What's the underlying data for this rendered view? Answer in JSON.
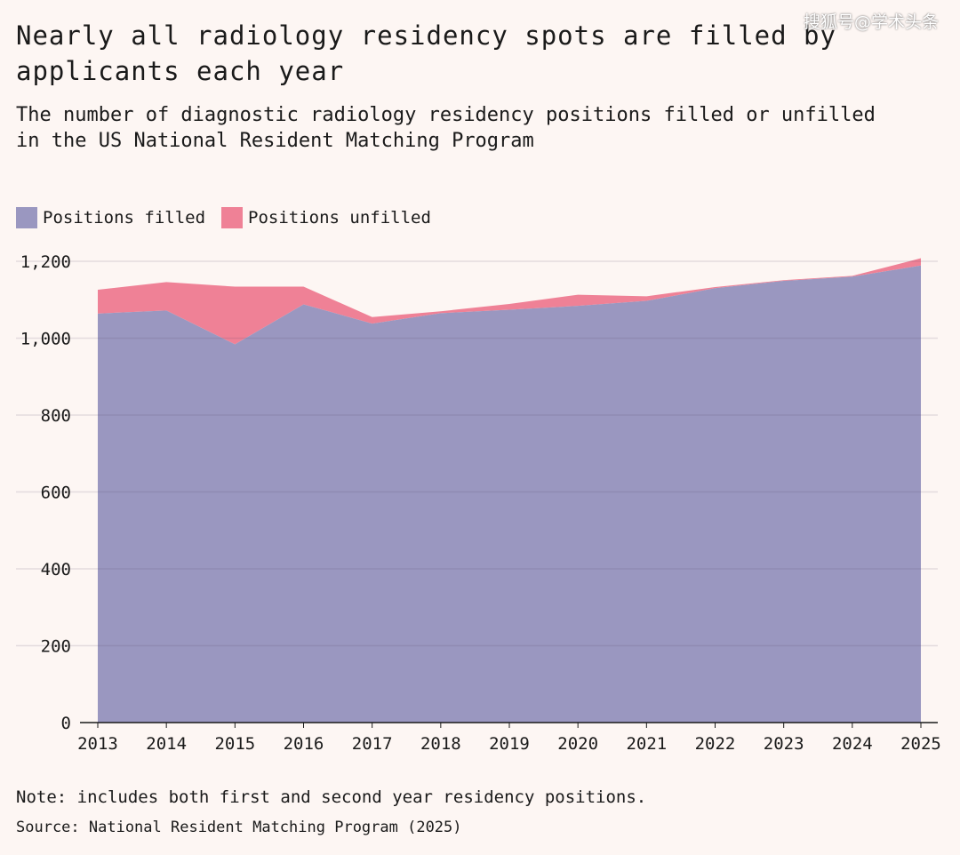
{
  "watermark": "搜狐号@学术头条",
  "chart_data": {
    "type": "area",
    "stacked": true,
    "title": "Nearly all radiology residency spots are filled by applicants each year",
    "subtitle": "The number of diagnostic radiology residency positions filled or unfilled in the US National Resident Matching Program",
    "xlabel": "",
    "ylabel": "",
    "x": [
      2013,
      2014,
      2015,
      2016,
      2017,
      2018,
      2019,
      2020,
      2021,
      2022,
      2023,
      2024,
      2025
    ],
    "series": [
      {
        "name": "Positions filled",
        "color": "#9a97c0",
        "values": [
          1064,
          1072,
          984,
          1088,
          1038,
          1065,
          1074,
          1084,
          1097,
          1130,
          1149,
          1160,
          1189
        ]
      },
      {
        "name": "Positions unfilled",
        "color": "#ef8196",
        "values": [
          62,
          74,
          150,
          46,
          17,
          5,
          15,
          29,
          12,
          3,
          2,
          2,
          19
        ]
      }
    ],
    "ylim": [
      0,
      1200
    ],
    "yticks": [
      "0",
      "200",
      "400",
      "600",
      "800",
      "1,000",
      "1,200"
    ],
    "ytick_values": [
      0,
      200,
      400,
      600,
      800,
      1000,
      1200
    ],
    "xticks": [
      "2013",
      "2014",
      "2015",
      "2016",
      "2017",
      "2018",
      "2019",
      "2020",
      "2021",
      "2022",
      "2023",
      "2024",
      "2025"
    ],
    "grid": true,
    "legend_position": "top-left",
    "note": "Note: includes both first and second year residency positions.",
    "source": "Source: National Resident Matching Program (2025)"
  }
}
